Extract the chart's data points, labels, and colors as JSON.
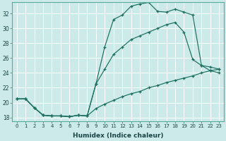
{
  "title": "",
  "xlabel": "Humidex (Indice chaleur)",
  "ylabel": "",
  "bg_color": "#cdeaea",
  "grid_color": "#b8d8d8",
  "line_color": "#1a6e5e",
  "x_min": -0.5,
  "x_max": 23.5,
  "y_min": 17.5,
  "y_max": 33.5,
  "yticks": [
    18,
    20,
    22,
    24,
    26,
    28,
    30,
    32
  ],
  "xticks": [
    0,
    1,
    2,
    3,
    4,
    5,
    6,
    7,
    8,
    9,
    10,
    11,
    12,
    13,
    14,
    15,
    16,
    17,
    18,
    19,
    20,
    21,
    22,
    23
  ],
  "series": [
    {
      "x": [
        0,
        1,
        2,
        3,
        4,
        5,
        6,
        7,
        8,
        9,
        10,
        11,
        12,
        13,
        14,
        15,
        16,
        17,
        18,
        19,
        20,
        21,
        22,
        23
      ],
      "y": [
        20.5,
        20.5,
        19.3,
        18.3,
        18.2,
        18.2,
        18.1,
        18.3,
        18.2,
        22.5,
        27.5,
        31.2,
        31.8,
        33.0,
        33.3,
        33.5,
        32.3,
        32.2,
        32.6,
        32.2,
        31.8,
        25.0,
        24.3,
        24.0
      ]
    },
    {
      "x": [
        0,
        1,
        2,
        3,
        4,
        5,
        6,
        7,
        8,
        9,
        10,
        11,
        12,
        13,
        14,
        15,
        16,
        17,
        18,
        19,
        20,
        21,
        22,
        23
      ],
      "y": [
        20.5,
        20.5,
        19.3,
        18.3,
        18.2,
        18.2,
        18.1,
        18.3,
        18.2,
        22.5,
        24.5,
        26.5,
        27.5,
        28.5,
        29.0,
        29.5,
        30.0,
        30.5,
        30.8,
        29.5,
        25.8,
        25.0,
        24.8,
        24.5
      ]
    },
    {
      "x": [
        0,
        1,
        2,
        3,
        4,
        5,
        6,
        7,
        8,
        9,
        10,
        11,
        12,
        13,
        14,
        15,
        16,
        17,
        18,
        19,
        20,
        21,
        22,
        23
      ],
      "y": [
        20.5,
        20.5,
        19.3,
        18.3,
        18.2,
        18.2,
        18.1,
        18.3,
        18.2,
        19.2,
        19.8,
        20.3,
        20.8,
        21.2,
        21.5,
        22.0,
        22.3,
        22.7,
        23.0,
        23.3,
        23.6,
        24.0,
        24.3,
        24.5
      ]
    }
  ]
}
